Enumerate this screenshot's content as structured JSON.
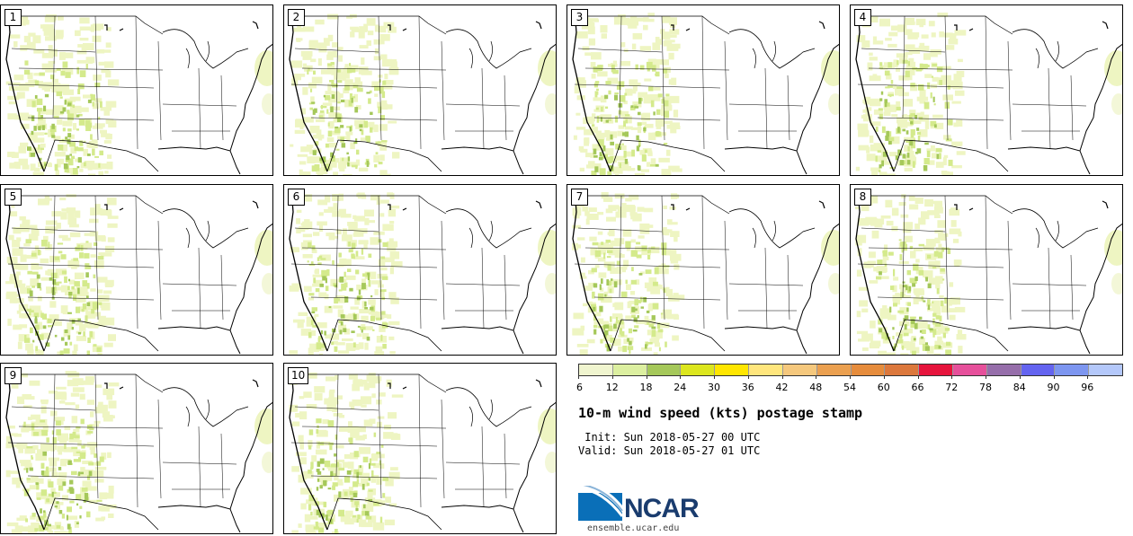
{
  "product": {
    "title": "10-m wind speed (kts) postage stamp",
    "init_line": " Init: Sun 2018-05-27 00 UTC",
    "valid_line": "Valid: Sun 2018-05-27 01 UTC"
  },
  "members": [
    {
      "label": "1"
    },
    {
      "label": "2"
    },
    {
      "label": "3"
    },
    {
      "label": "4"
    },
    {
      "label": "5"
    },
    {
      "label": "6"
    },
    {
      "label": "7"
    },
    {
      "label": "8"
    },
    {
      "label": "9"
    },
    {
      "label": "10"
    }
  ],
  "colorbar": {
    "colors": [
      "#f0f5cf",
      "#dcefa0",
      "#a5c85a",
      "#dce61e",
      "#ffe600",
      "#ffe67d",
      "#f5c87d",
      "#eba050",
      "#e68c3c",
      "#dc783c",
      "#e6143c",
      "#e6509b",
      "#966eaa",
      "#6464f0",
      "#7d96f0",
      "#b4c8fa"
    ],
    "tick_labels": [
      "6",
      "12",
      "18",
      "24",
      "30",
      "36",
      "42",
      "48",
      "54",
      "60",
      "66",
      "72",
      "78",
      "84",
      "90",
      "96"
    ]
  },
  "logo": {
    "name": "NCAR",
    "site": "ensemble.ucar.edu"
  }
}
